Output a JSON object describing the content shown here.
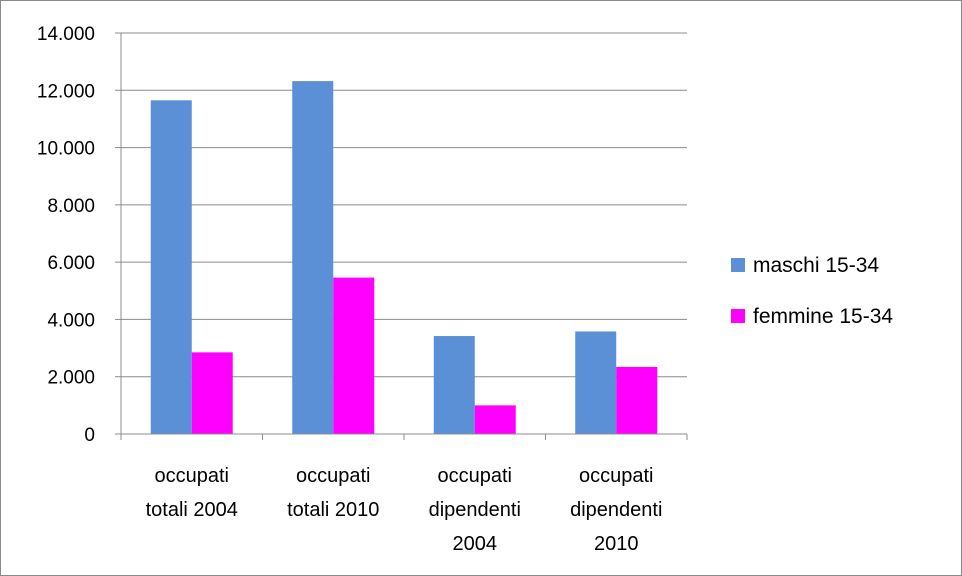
{
  "chart_data": {
    "type": "bar",
    "categories": [
      [
        "occupati",
        "totali 2004"
      ],
      [
        "occupati",
        "totali 2010"
      ],
      [
        "occupati",
        "dipendenti",
        "2004"
      ],
      [
        "occupati",
        "dipendenti",
        "2010"
      ]
    ],
    "series": [
      {
        "name": "maschi 15-34",
        "color": "#5B8FD6",
        "values": [
          11650,
          12320,
          3420,
          3580
        ]
      },
      {
        "name": "femmine 15-34",
        "color": "#FF00FF",
        "values": [
          2850,
          5460,
          1000,
          2340
        ]
      }
    ],
    "ylim": [
      0,
      14000
    ],
    "yticks": [
      0,
      2000,
      4000,
      6000,
      8000,
      10000,
      12000,
      14000
    ],
    "ytick_labels": [
      "0",
      "2.000",
      "4.000",
      "6.000",
      "8.000",
      "10.000",
      "12.000",
      "14.000"
    ],
    "grid": true,
    "legend_position": "right"
  }
}
